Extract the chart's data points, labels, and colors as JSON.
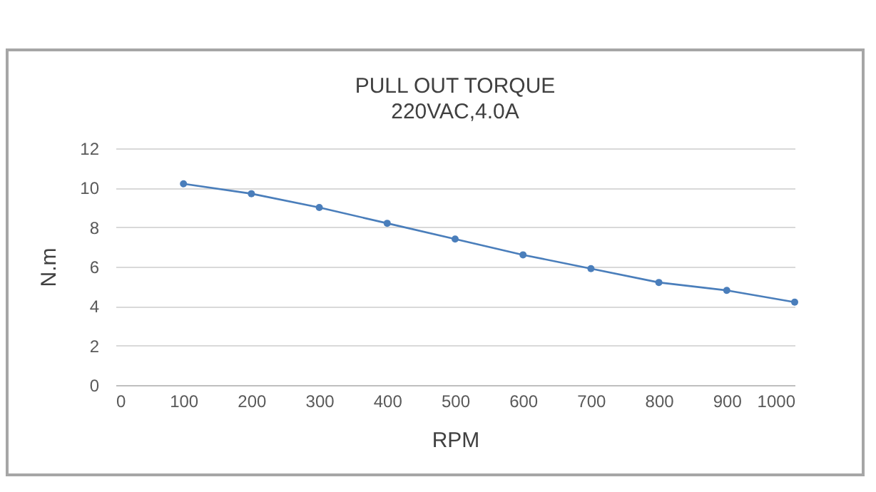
{
  "chart_data": {
    "type": "line",
    "title": "PULL OUT TORQUE",
    "subtitle": "220VAC,4.0A",
    "xlabel": "RPM",
    "ylabel": "N.m",
    "x": [
      100,
      200,
      300,
      400,
      500,
      600,
      700,
      800,
      900,
      1000
    ],
    "series": [
      {
        "color": "#4a7ebb",
        "values": [
          10.2,
          9.7,
          9.0,
          8.2,
          7.4,
          6.6,
          5.9,
          5.2,
          4.8,
          4.2
        ]
      }
    ],
    "xlim": [
      0,
      1000
    ],
    "xticks": [
      0,
      100,
      200,
      300,
      400,
      500,
      600,
      700,
      800,
      900,
      1000
    ],
    "ylim": [
      0,
      12
    ],
    "yticks": [
      0,
      2,
      4,
      6,
      8,
      10,
      12
    ],
    "grid": "y",
    "legend": false,
    "marker": "circle",
    "line_style": "solid"
  }
}
